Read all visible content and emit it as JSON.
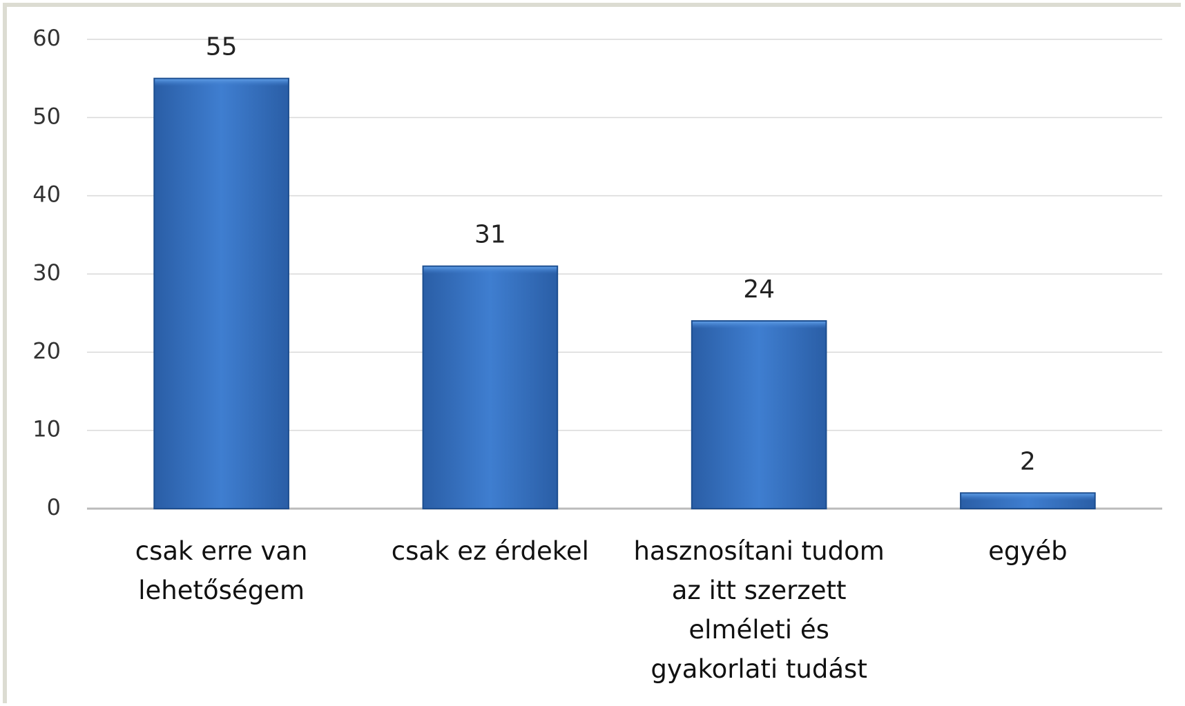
{
  "chart_data": {
    "type": "bar",
    "categories": [
      "csak erre van lehetőségem",
      "csak ez érdekel",
      "hasznosítani tudom az itt szerzett elméleti és gyakorlati tudást",
      "egyéb"
    ],
    "values": [
      55,
      31,
      24,
      2
    ],
    "color": "#3a76c4",
    "ylim": [
      0,
      60
    ],
    "yticks": [
      0,
      10,
      20,
      30,
      40,
      50,
      60
    ],
    "grid": true
  }
}
